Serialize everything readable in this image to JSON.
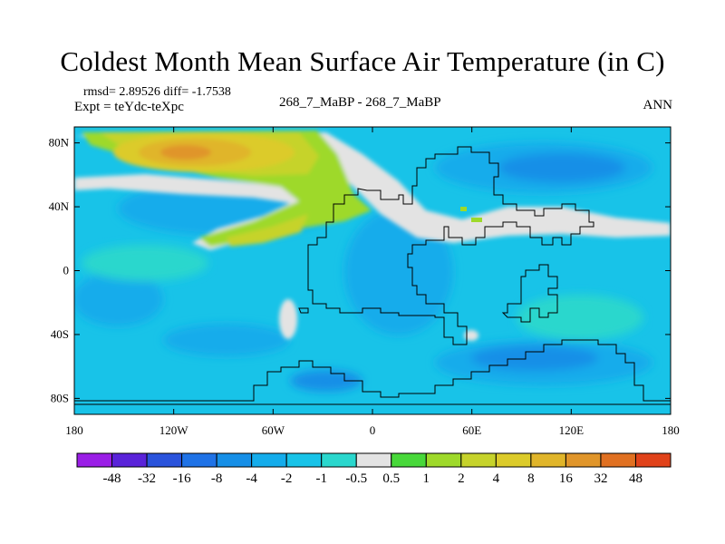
{
  "title": "Coldest Month Mean Surface Air Temperature (in C)",
  "stats": "rmsd= 2.89526 diff= -1.7538",
  "expt": "Expt = teYdc-teXpc",
  "center_label": "268_7_MaBP - 268_7_MaBP",
  "season": "ANN",
  "lat_ticks": [
    {
      "value": 80,
      "label": "80N"
    },
    {
      "value": 40,
      "label": "40N"
    },
    {
      "value": 0,
      "label": "0"
    },
    {
      "value": -40,
      "label": "40S"
    },
    {
      "value": -80,
      "label": "80S"
    }
  ],
  "lon_ticks": [
    {
      "value": -180,
      "label": "180"
    },
    {
      "value": -120,
      "label": "120W"
    },
    {
      "value": -60,
      "label": "60W"
    },
    {
      "value": 0,
      "label": "0"
    },
    {
      "value": 60,
      "label": "60E"
    },
    {
      "value": 120,
      "label": "120E"
    },
    {
      "value": 180,
      "label": "180"
    }
  ],
  "colorbar": {
    "colors": [
      "#9a1ee6",
      "#5a23d9",
      "#2a53dc",
      "#1f72e6",
      "#168fe7",
      "#14aceb",
      "#18c3e8",
      "#2ad7cd",
      "#e3e3e3",
      "#48d83a",
      "#9ed92a",
      "#c6d32b",
      "#dccb2a",
      "#e0b52a",
      "#e0952a",
      "#e07021",
      "#e0421a"
    ],
    "labels": [
      "-48",
      "-32",
      "-16",
      "-8",
      "-4",
      "-2",
      "-1",
      "-0.5",
      "0.5",
      "1",
      "2",
      "4",
      "8",
      "16",
      "32",
      "48"
    ]
  },
  "map_colors": {
    "ocean": "#18c3e8",
    "mid_blue": "#14aceb",
    "deep_blue": "#168fe7",
    "near_zero": "#2ad7cd",
    "neutral": "#e3e3e3",
    "warm1": "#9ed92a",
    "warm2": "#c6d32b",
    "warm3": "#dccb2a",
    "warm4": "#e0b52a",
    "warm5": "#e0952a"
  }
}
